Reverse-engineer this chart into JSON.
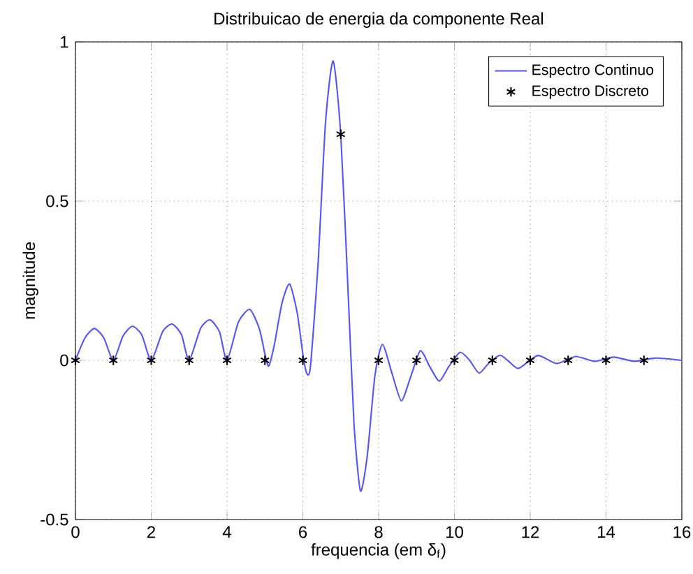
{
  "chart_data": {
    "type": "line",
    "title": "Distribuicao de energia da componente Real",
    "xlabel": "frequencia (em δ$_{f}$)",
    "ylabel": "magnitude",
    "xlim": [
      0,
      16
    ],
    "ylim": [
      -0.5,
      1
    ],
    "xticks": [
      0,
      2,
      4,
      6,
      8,
      10,
      12,
      14,
      16
    ],
    "yticks": [
      {
        "value": -0.5,
        "label": "-0.5"
      },
      0,
      {
        "value": 0.5,
        "label": "0.5"
      },
      1
    ],
    "grid": true,
    "legend": "top right",
    "series": [
      {
        "name": "Espectro Continuo",
        "color": "#5555ff",
        "marker": "none",
        "x": [
          0,
          0.25,
          0.5,
          0.75,
          1,
          1.25,
          1.5,
          1.75,
          2,
          2.3,
          2.55,
          2.8,
          3,
          3.3,
          3.55,
          3.8,
          4,
          4.3,
          4.6,
          4.85,
          5,
          5.1,
          5.25,
          5.45,
          5.65,
          5.85,
          6,
          6.1,
          6.2,
          6.4,
          6.6,
          6.8,
          7,
          7.2,
          7.35,
          7.52,
          7.7,
          7.9,
          8.1,
          8.35,
          8.6,
          8.85,
          9.1,
          9.35,
          9.6,
          9.85,
          10.15,
          10.4,
          10.65,
          10.9,
          11.2,
          11.45,
          11.7,
          12.2,
          12.7,
          13.2,
          13.7,
          14.2,
          14.75,
          15.3,
          16
        ],
        "values": [
          0,
          0.07,
          0.1,
          0.07,
          0,
          0.075,
          0.107,
          0.08,
          0,
          0.09,
          0.114,
          0.08,
          0,
          0.1,
          0.127,
          0.09,
          0,
          0.12,
          0.16,
          0.1,
          0.02,
          -0.018,
          0.05,
          0.18,
          0.24,
          0.15,
          0.02,
          -0.04,
          -0.02,
          0.3,
          0.75,
          0.94,
          0.71,
          0.2,
          -0.2,
          -0.41,
          -0.3,
          -0.05,
          0.05,
          -0.04,
          -0.127,
          -0.05,
          0.03,
          -0.02,
          -0.065,
          -0.02,
          0.025,
          0,
          -0.04,
          -0.01,
          0.016,
          -0.005,
          -0.025,
          0.015,
          -0.01,
          0.012,
          -0.003,
          0.01,
          -0.003,
          0.007,
          0
        ]
      },
      {
        "name": "Espectro Discreto",
        "type": "scatter",
        "color": "#000000",
        "marker": "cross",
        "x": [
          0,
          1,
          2,
          3,
          4,
          5,
          6,
          7,
          8,
          9,
          10,
          11,
          12,
          13,
          14,
          15
        ],
        "values": [
          0,
          0,
          0,
          0,
          0,
          0,
          0,
          0.71,
          0,
          0,
          0,
          0,
          0,
          0,
          0,
          0
        ]
      }
    ]
  }
}
